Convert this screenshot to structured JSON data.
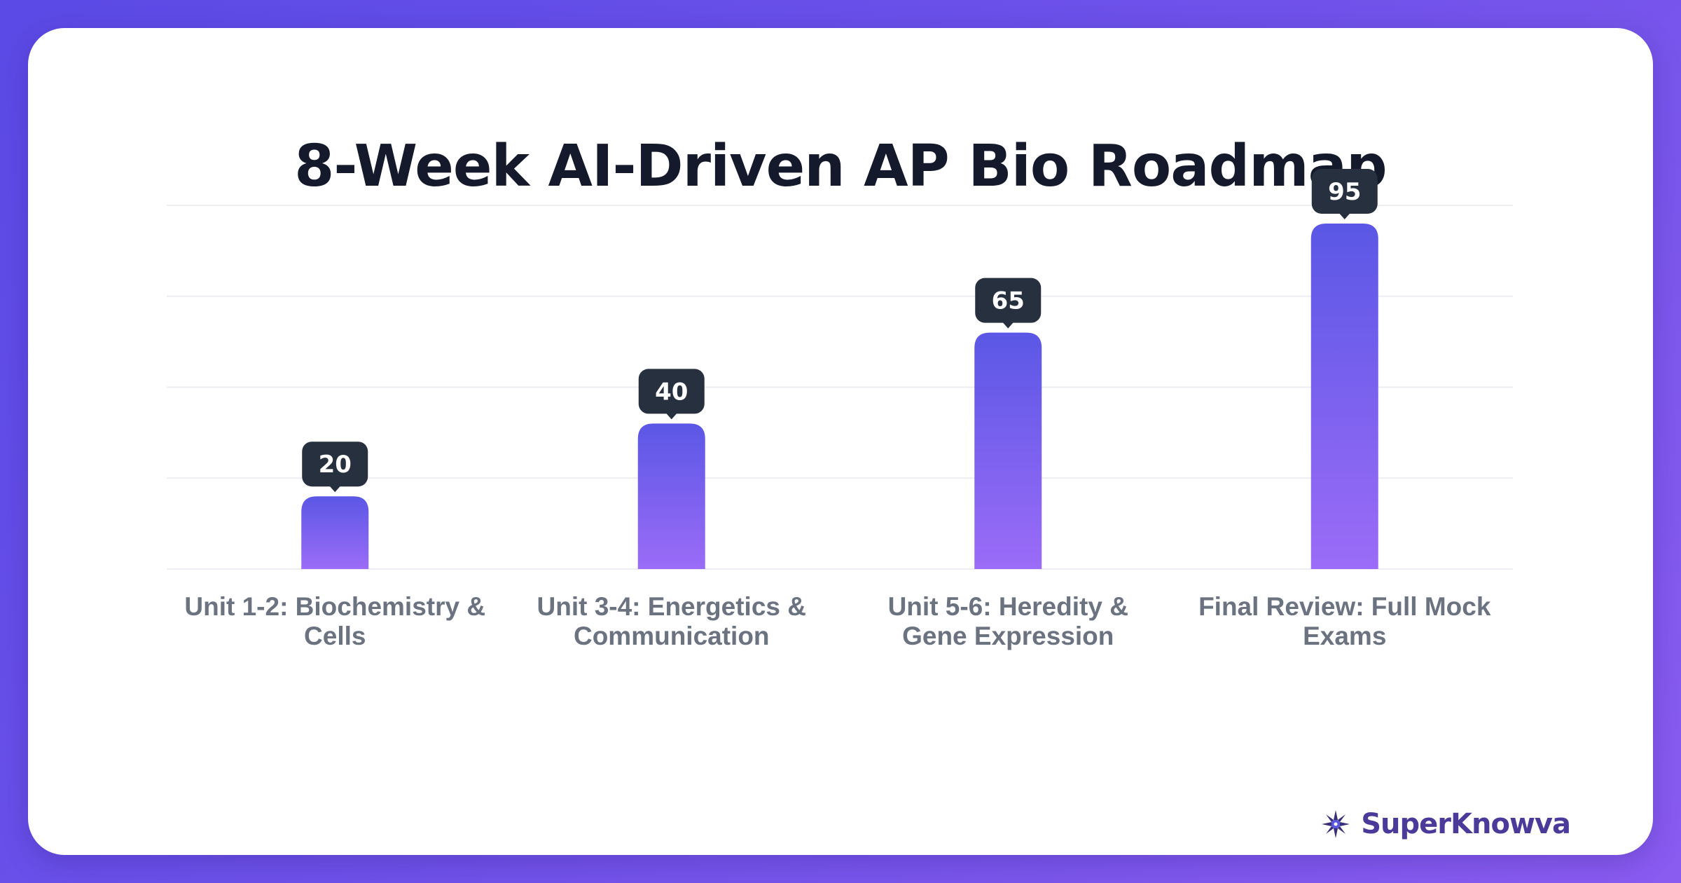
{
  "chart_data": {
    "type": "bar",
    "title": "8-Week AI-Driven AP Bio Roadmap",
    "categories": [
      "Unit 1-2: Biochemistry & Cells",
      "Unit 3-4: Energetics & Communication",
      "Unit 5-6: Heredity & Gene Expression",
      "Final Review: Full Mock Exams"
    ],
    "category_lines": [
      [
        "Unit 1-2: Biochemistry &",
        "Cells"
      ],
      [
        "Unit 3-4: Energetics &",
        "Communication"
      ],
      [
        "Unit 5-6: Heredity &",
        "Gene Expression"
      ],
      [
        "Final Review: Full Mock",
        "Exams"
      ]
    ],
    "values": [
      20,
      40,
      65,
      95
    ],
    "ylim": [
      0,
      100
    ],
    "grid": true,
    "bar_gradient": [
      "#5b57e6",
      "#9b6cf7"
    ],
    "label_bg": "#27303f"
  },
  "brand": {
    "name": "SuperKnowva",
    "icon": "star-burst-icon"
  }
}
